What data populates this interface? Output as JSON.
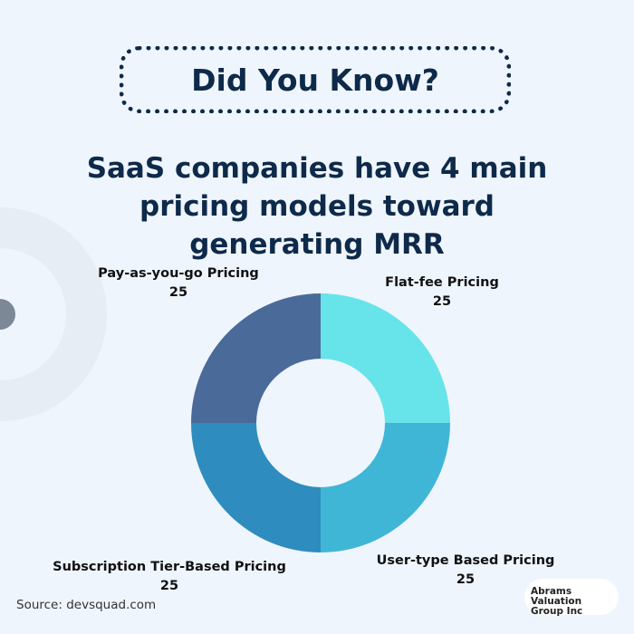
{
  "badge": {
    "text": "Did You Know?"
  },
  "headline": "SaaS companies have 4 main pricing models toward generating MRR",
  "source": "Source: devsquad.com",
  "logo": {
    "line1": "Abrams Valuation",
    "line2": "Group Inc"
  },
  "chart_data": {
    "type": "pie",
    "donut": true,
    "title": "",
    "categories": [
      "Flat-fee Pricing",
      "User-type Based Pricing",
      "Subscription Tier-Based Pricing",
      "Pay-as-you-go Pricing"
    ],
    "values": [
      25,
      25,
      25,
      25
    ],
    "colors": [
      "#67e3ea",
      "#40b6d6",
      "#2e8cbf",
      "#4a6a9a"
    ],
    "labels": [
      {
        "name": "Flat-fee Pricing",
        "value": "25"
      },
      {
        "name": "User-type Based Pricing",
        "value": "25"
      },
      {
        "name": "Subscription Tier-Based Pricing",
        "value": "25"
      },
      {
        "name": "Pay-as-you-go Pricing",
        "value": "25"
      }
    ]
  }
}
